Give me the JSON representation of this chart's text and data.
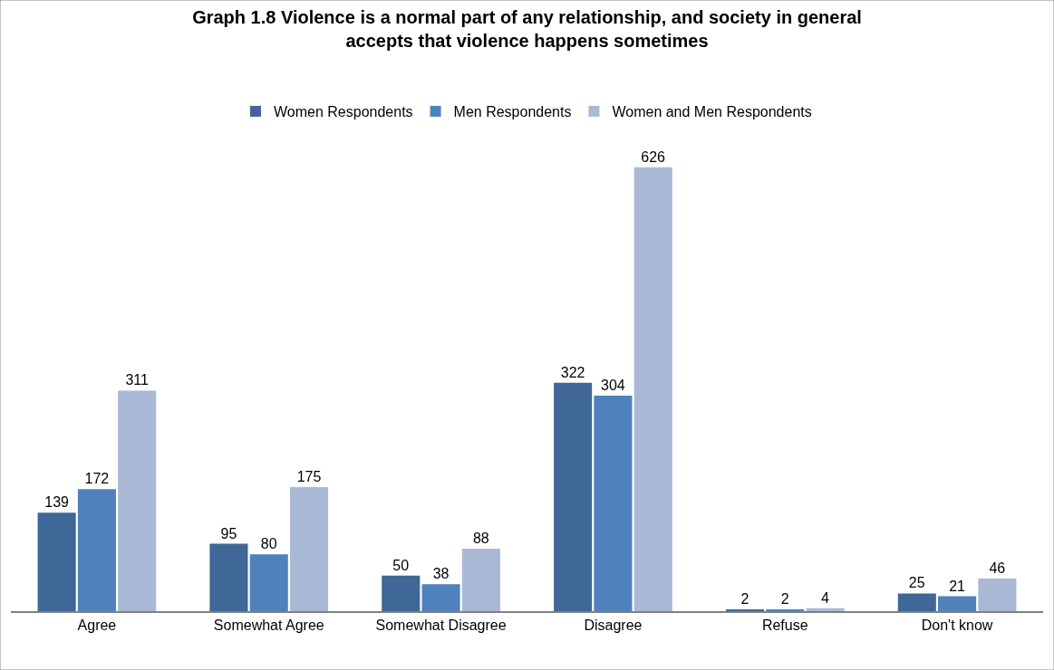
{
  "chart_data": {
    "type": "bar",
    "title": "Graph 1.8 Violence is a normal part of any relationship, and society in general\naccepts that violence happens sometimes",
    "categories": [
      "Agree",
      "Somewhat Agree",
      "Somewhat Disagree",
      "Disagree",
      "Refuse",
      "Don't know"
    ],
    "series": [
      {
        "name": "Women Respondents",
        "color": "#3f6797",
        "values": [
          139,
          95,
          50,
          322,
          2,
          25
        ]
      },
      {
        "name": "Men Respondents",
        "color": "#4f81bd",
        "values": [
          172,
          80,
          38,
          304,
          2,
          21
        ]
      },
      {
        "name": "Women and Men Respondents",
        "color": "#a9b9d5",
        "values": [
          311,
          175,
          88,
          626,
          4,
          46
        ]
      }
    ],
    "data_labels": true,
    "legend": "top"
  }
}
